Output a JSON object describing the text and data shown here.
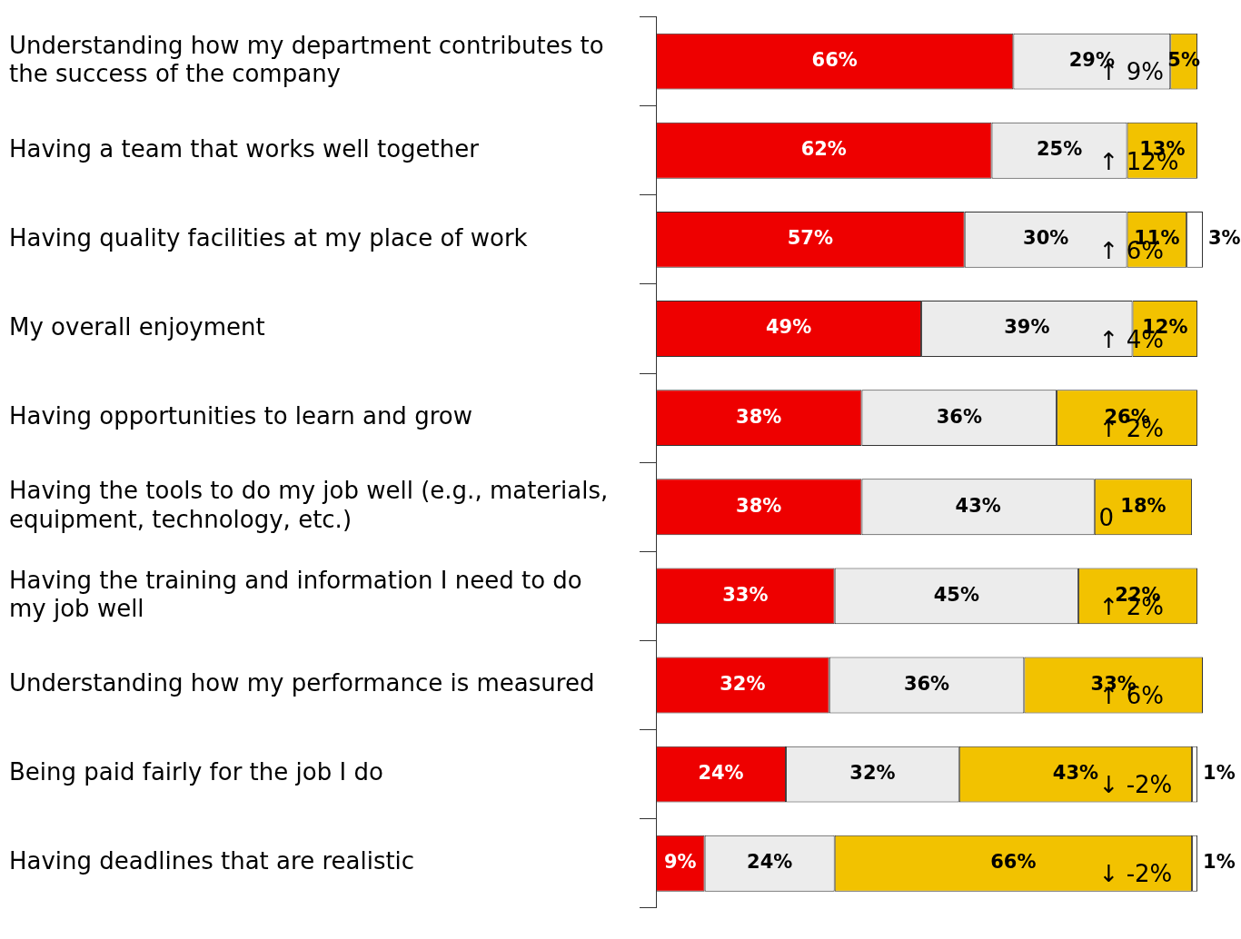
{
  "chart_data": {
    "type": "bar",
    "orientation": "horizontal",
    "stacked": true,
    "legend": false,
    "tick_labels": "y",
    "categories": [
      "Understanding how my department contributes to the success of the company",
      "Having a team that works well together",
      "Having quality facilities at my place of work",
      "My overall enjoyment",
      "Having opportunities to learn and grow",
      "Having the tools to do my job well (e.g., materials, equipment, technology, etc.)",
      "Having the training and information I need to do my job well",
      "Understanding how my performance is measured",
      "Being paid fairly for the job I do",
      "Having deadlines that are realistic"
    ],
    "series": [
      {
        "color": "#ee0000",
        "values": [
          66,
          62,
          57,
          49,
          38,
          38,
          33,
          32,
          24,
          9
        ],
        "value_labels": [
          "66%",
          "62%",
          "57%",
          "49%",
          "38%",
          "38%",
          "33%",
          "32%",
          "24%",
          "9%"
        ]
      },
      {
        "color": "#ececec",
        "values": [
          29,
          25,
          30,
          39,
          36,
          43,
          45,
          36,
          32,
          24
        ],
        "value_labels": [
          "29%",
          "25%",
          "30%",
          "39%",
          "36%",
          "43%",
          "45%",
          "36%",
          "32%",
          "24%"
        ]
      },
      {
        "color": "#f2c200",
        "values": [
          5,
          13,
          11,
          12,
          26,
          18,
          22,
          33,
          43,
          66
        ],
        "value_labels": [
          "5%",
          "13%",
          "11%",
          "12%",
          "26%",
          "18%",
          "22%",
          "33%",
          "43%",
          "66%"
        ]
      },
      {
        "color": "#ffffff",
        "values": [
          null,
          null,
          3,
          null,
          null,
          null,
          null,
          null,
          1,
          1
        ],
        "value_labels": [
          null,
          null,
          "3%",
          null,
          null,
          null,
          null,
          null,
          "1%",
          "1%"
        ]
      }
    ],
    "annotations": [
      "↑ 9%",
      "↑ 12%",
      "↑ 6%",
      "↑ 4%",
      "↑ 2%",
      "0",
      "↑ 2%",
      "↑ 6%",
      "↓ -2%",
      "↓ -2%"
    ]
  }
}
